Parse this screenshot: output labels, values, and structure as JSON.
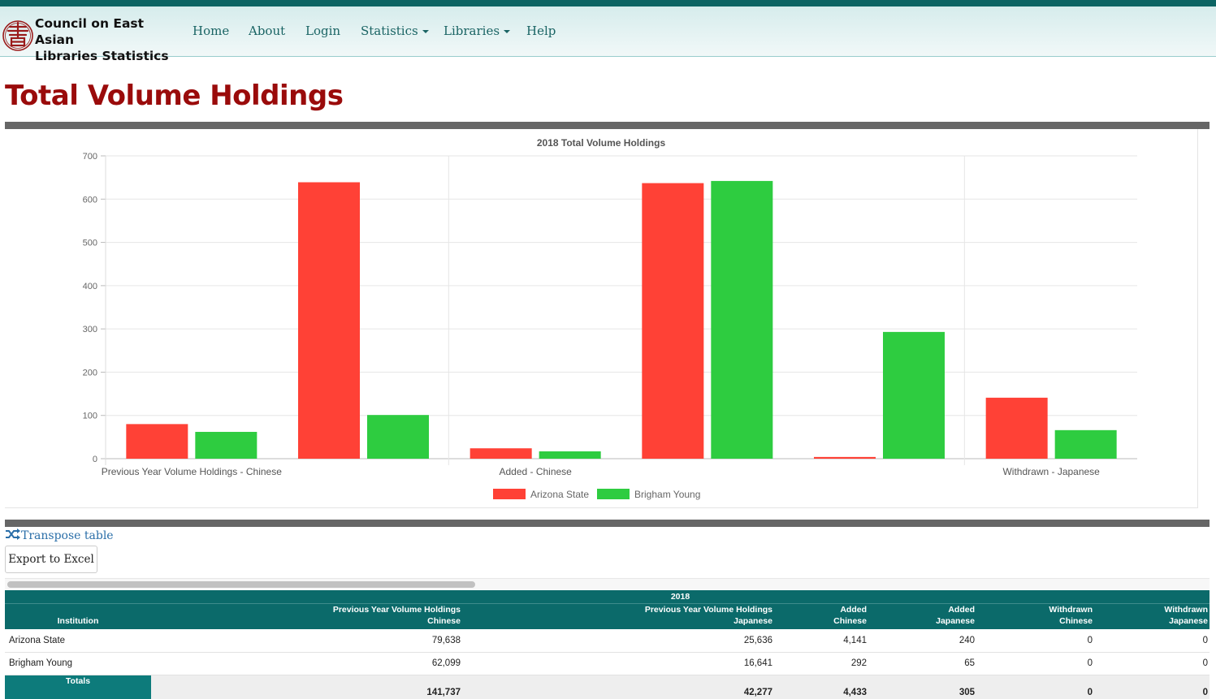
{
  "brand": {
    "title_line1": "Council on East Asian",
    "title_line2": "Libraries Statistics",
    "logo_icon": "book-seal-icon"
  },
  "nav": {
    "home": "Home",
    "about": "About",
    "login": "Login",
    "statistics": "Statistics",
    "libraries": "Libraries",
    "help": "Help"
  },
  "page": {
    "title": "Total Volume Holdings"
  },
  "colors": {
    "arizona": "#ff4136",
    "brigham": "#2ecc40",
    "teal": "#0b6a6a",
    "title_red": "#9a0b0b"
  },
  "chart_data": {
    "type": "bar",
    "title": "2018 Total Volume Holdings",
    "categories": [
      "Previous Year Volume Holdings - Chinese",
      "",
      "Added - Chinese",
      "",
      "",
      "Withdrawn - Japanese"
    ],
    "series": [
      {
        "name": "Arizona State",
        "values": [
          80,
          639,
          24,
          637,
          4,
          141
        ]
      },
      {
        "name": "Brigham Young",
        "values": [
          62,
          101,
          17,
          642,
          293,
          66
        ]
      }
    ],
    "ylim": [
      0,
      700
    ],
    "yticks": [
      0,
      100,
      200,
      300,
      400,
      500,
      600,
      700
    ],
    "grid": true,
    "legend": "bottom"
  },
  "actions": {
    "transpose": "Transpose table",
    "export": "Export to Excel"
  },
  "table": {
    "year": "2018",
    "headers": {
      "institution": "Institution",
      "c1a": "Previous Year Volume Holdings",
      "c1b": "Chinese",
      "c2a": "Previous Year Volume Holdings",
      "c2b": "Japanese",
      "c3a": "Added",
      "c3b": "Chinese",
      "c4a": "Added",
      "c4b": "Japanese",
      "c5a": "Withdrawn",
      "c5b": "Chinese",
      "c6a": "Withdrawn",
      "c6b": "Japanese"
    },
    "rows": [
      {
        "name": "Arizona State",
        "c1": "79,638",
        "c2": "25,636",
        "c3": "4,141",
        "c4": "240",
        "c5": "0",
        "c6": "0"
      },
      {
        "name": "Brigham Young",
        "c1": "62,099",
        "c2": "16,641",
        "c3": "292",
        "c4": "65",
        "c5": "0",
        "c6": "0"
      }
    ],
    "totals": {
      "label": "Totals",
      "c1": "141,737",
      "c2": "42,277",
      "c3": "4,433",
      "c4": "305",
      "c5": "0",
      "c6": "0"
    }
  }
}
